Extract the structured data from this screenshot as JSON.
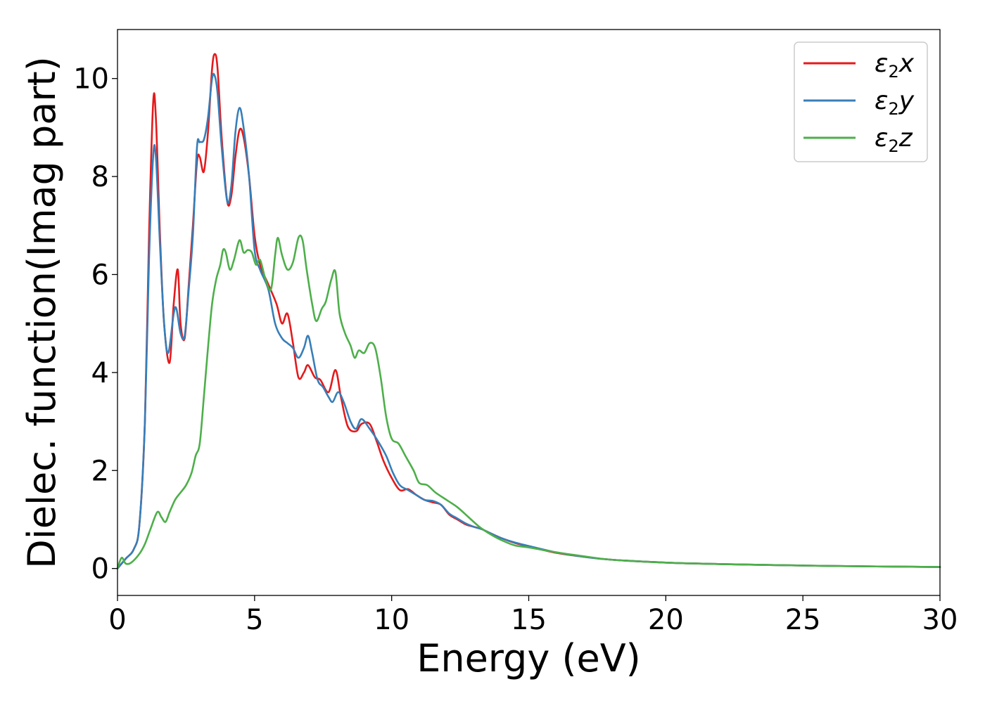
{
  "chart_data": {
    "type": "line",
    "xlabel": "Energy (eV)",
    "ylabel": "Dielec. function(Imag part)",
    "xlim": [
      0,
      30
    ],
    "ylim": [
      -0.55,
      11.0
    ],
    "xticks": [
      0,
      5,
      10,
      15,
      20,
      25,
      30
    ],
    "yticks": [
      0,
      2,
      4,
      6,
      8,
      10
    ],
    "grid": false,
    "legend_position": "top-right",
    "series": [
      {
        "name": "ε2x",
        "legend_main": "ε",
        "legend_sub": "2",
        "legend_tail": "x",
        "color": "#e41a1c",
        "points": [
          [
            0,
            0.0
          ],
          [
            0.3,
            0.2
          ],
          [
            0.6,
            0.4
          ],
          [
            0.8,
            0.9
          ],
          [
            1.0,
            3.0
          ],
          [
            1.15,
            6.8
          ],
          [
            1.3,
            9.5
          ],
          [
            1.4,
            9.2
          ],
          [
            1.55,
            6.8
          ],
          [
            1.7,
            5.0
          ],
          [
            1.9,
            4.2
          ],
          [
            2.05,
            5.4
          ],
          [
            2.2,
            6.1
          ],
          [
            2.3,
            5.0
          ],
          [
            2.45,
            4.7
          ],
          [
            2.6,
            5.8
          ],
          [
            2.75,
            7.0
          ],
          [
            2.9,
            8.3
          ],
          [
            3.0,
            8.4
          ],
          [
            3.15,
            8.1
          ],
          [
            3.3,
            8.9
          ],
          [
            3.45,
            10.2
          ],
          [
            3.55,
            10.5
          ],
          [
            3.65,
            10.2
          ],
          [
            3.8,
            8.8
          ],
          [
            4.0,
            7.5
          ],
          [
            4.15,
            7.6
          ],
          [
            4.3,
            8.4
          ],
          [
            4.45,
            8.95
          ],
          [
            4.6,
            8.8
          ],
          [
            4.8,
            8.0
          ],
          [
            5.0,
            6.8
          ],
          [
            5.2,
            6.2
          ],
          [
            5.5,
            5.8
          ],
          [
            5.8,
            5.4
          ],
          [
            6.0,
            5.0
          ],
          [
            6.2,
            5.2
          ],
          [
            6.4,
            4.6
          ],
          [
            6.6,
            3.9
          ],
          [
            6.8,
            4.0
          ],
          [
            6.95,
            4.15
          ],
          [
            7.2,
            3.9
          ],
          [
            7.4,
            3.85
          ],
          [
            7.7,
            3.6
          ],
          [
            7.95,
            4.05
          ],
          [
            8.15,
            3.5
          ],
          [
            8.4,
            2.9
          ],
          [
            8.7,
            2.8
          ],
          [
            8.9,
            2.95
          ],
          [
            9.2,
            2.95
          ],
          [
            9.45,
            2.6
          ],
          [
            9.7,
            2.2
          ],
          [
            10.0,
            1.85
          ],
          [
            10.3,
            1.6
          ],
          [
            10.6,
            1.62
          ],
          [
            10.9,
            1.5
          ],
          [
            11.2,
            1.4
          ],
          [
            11.5,
            1.35
          ],
          [
            11.8,
            1.3
          ],
          [
            12.1,
            1.1
          ],
          [
            12.4,
            1.0
          ],
          [
            12.7,
            0.9
          ],
          [
            13.0,
            0.85
          ],
          [
            13.3,
            0.8
          ],
          [
            13.6,
            0.72
          ],
          [
            14.0,
            0.62
          ],
          [
            14.5,
            0.52
          ],
          [
            15.0,
            0.45
          ],
          [
            16.0,
            0.32
          ],
          [
            17.0,
            0.24
          ],
          [
            18.0,
            0.18
          ],
          [
            20.0,
            0.12
          ],
          [
            22.0,
            0.09
          ],
          [
            25.0,
            0.06
          ],
          [
            28.0,
            0.04
          ],
          [
            30.0,
            0.03
          ]
        ]
      },
      {
        "name": "ε2y",
        "legend_main": "ε",
        "legend_sub": "2",
        "legend_tail": "y",
        "color": "#377eb8",
        "points": [
          [
            0,
            0.0
          ],
          [
            0.3,
            0.2
          ],
          [
            0.6,
            0.4
          ],
          [
            0.8,
            0.9
          ],
          [
            1.0,
            3.0
          ],
          [
            1.15,
            6.3
          ],
          [
            1.3,
            8.4
          ],
          [
            1.4,
            8.4
          ],
          [
            1.55,
            6.6
          ],
          [
            1.7,
            5.0
          ],
          [
            1.85,
            4.4
          ],
          [
            2.05,
            5.2
          ],
          [
            2.15,
            5.3
          ],
          [
            2.3,
            4.8
          ],
          [
            2.45,
            4.75
          ],
          [
            2.6,
            5.7
          ],
          [
            2.75,
            6.8
          ],
          [
            2.9,
            8.6
          ],
          [
            3.0,
            8.7
          ],
          [
            3.15,
            8.75
          ],
          [
            3.3,
            9.2
          ],
          [
            3.45,
            10.0
          ],
          [
            3.55,
            10.05
          ],
          [
            3.65,
            9.7
          ],
          [
            3.8,
            8.6
          ],
          [
            4.0,
            7.5
          ],
          [
            4.15,
            7.8
          ],
          [
            4.3,
            8.9
          ],
          [
            4.45,
            9.4
          ],
          [
            4.6,
            9.0
          ],
          [
            4.8,
            8.0
          ],
          [
            5.0,
            6.5
          ],
          [
            5.2,
            6.1
          ],
          [
            5.5,
            5.7
          ],
          [
            5.75,
            5.0
          ],
          [
            6.0,
            4.7
          ],
          [
            6.2,
            4.6
          ],
          [
            6.4,
            4.5
          ],
          [
            6.6,
            4.3
          ],
          [
            6.8,
            4.5
          ],
          [
            6.95,
            4.75
          ],
          [
            7.1,
            4.4
          ],
          [
            7.3,
            3.85
          ],
          [
            7.5,
            3.7
          ],
          [
            7.7,
            3.5
          ],
          [
            7.85,
            3.4
          ],
          [
            8.05,
            3.6
          ],
          [
            8.25,
            3.4
          ],
          [
            8.5,
            3.0
          ],
          [
            8.7,
            2.85
          ],
          [
            8.9,
            3.05
          ],
          [
            9.2,
            2.85
          ],
          [
            9.5,
            2.6
          ],
          [
            9.8,
            2.3
          ],
          [
            10.05,
            1.95
          ],
          [
            10.3,
            1.7
          ],
          [
            10.6,
            1.6
          ],
          [
            10.9,
            1.5
          ],
          [
            11.2,
            1.4
          ],
          [
            11.5,
            1.38
          ],
          [
            11.8,
            1.3
          ],
          [
            12.1,
            1.12
          ],
          [
            12.4,
            1.02
          ],
          [
            12.7,
            0.92
          ],
          [
            13.0,
            0.85
          ],
          [
            13.3,
            0.8
          ],
          [
            13.6,
            0.72
          ],
          [
            14.0,
            0.62
          ],
          [
            14.5,
            0.53
          ],
          [
            15.0,
            0.46
          ],
          [
            16.0,
            0.33
          ],
          [
            17.0,
            0.24
          ],
          [
            18.0,
            0.18
          ],
          [
            20.0,
            0.12
          ],
          [
            22.0,
            0.09
          ],
          [
            25.0,
            0.06
          ],
          [
            28.0,
            0.04
          ],
          [
            30.0,
            0.03
          ]
        ]
      },
      {
        "name": "ε2z",
        "legend_main": "ε",
        "legend_sub": "2",
        "legend_tail": "z",
        "color": "#4daf4a",
        "points": [
          [
            0,
            0.0
          ],
          [
            0.15,
            0.22
          ],
          [
            0.3,
            0.1
          ],
          [
            0.5,
            0.12
          ],
          [
            0.8,
            0.3
          ],
          [
            1.0,
            0.5
          ],
          [
            1.2,
            0.8
          ],
          [
            1.45,
            1.15
          ],
          [
            1.6,
            1.05
          ],
          [
            1.75,
            0.95
          ],
          [
            1.9,
            1.15
          ],
          [
            2.1,
            1.4
          ],
          [
            2.3,
            1.55
          ],
          [
            2.5,
            1.7
          ],
          [
            2.7,
            1.95
          ],
          [
            2.85,
            2.3
          ],
          [
            3.0,
            2.55
          ],
          [
            3.15,
            3.5
          ],
          [
            3.3,
            4.5
          ],
          [
            3.45,
            5.4
          ],
          [
            3.6,
            5.9
          ],
          [
            3.75,
            6.2
          ],
          [
            3.85,
            6.5
          ],
          [
            3.95,
            6.45
          ],
          [
            4.1,
            6.1
          ],
          [
            4.25,
            6.3
          ],
          [
            4.45,
            6.7
          ],
          [
            4.6,
            6.45
          ],
          [
            4.75,
            6.5
          ],
          [
            4.9,
            6.45
          ],
          [
            5.05,
            6.2
          ],
          [
            5.2,
            6.3
          ],
          [
            5.4,
            5.9
          ],
          [
            5.6,
            5.7
          ],
          [
            5.75,
            6.4
          ],
          [
            5.85,
            6.75
          ],
          [
            6.0,
            6.4
          ],
          [
            6.2,
            6.1
          ],
          [
            6.4,
            6.25
          ],
          [
            6.6,
            6.75
          ],
          [
            6.75,
            6.7
          ],
          [
            6.9,
            6.1
          ],
          [
            7.1,
            5.4
          ],
          [
            7.25,
            5.05
          ],
          [
            7.45,
            5.3
          ],
          [
            7.6,
            5.45
          ],
          [
            7.8,
            5.9
          ],
          [
            7.95,
            6.05
          ],
          [
            8.1,
            5.2
          ],
          [
            8.3,
            4.8
          ],
          [
            8.5,
            4.55
          ],
          [
            8.65,
            4.3
          ],
          [
            8.8,
            4.45
          ],
          [
            9.0,
            4.4
          ],
          [
            9.2,
            4.6
          ],
          [
            9.4,
            4.5
          ],
          [
            9.6,
            3.9
          ],
          [
            9.8,
            3.1
          ],
          [
            10.0,
            2.65
          ],
          [
            10.25,
            2.55
          ],
          [
            10.5,
            2.3
          ],
          [
            10.8,
            2.0
          ],
          [
            11.0,
            1.75
          ],
          [
            11.3,
            1.7
          ],
          [
            11.6,
            1.55
          ],
          [
            12.0,
            1.4
          ],
          [
            12.4,
            1.25
          ],
          [
            12.8,
            1.05
          ],
          [
            13.2,
            0.85
          ],
          [
            13.6,
            0.7
          ],
          [
            14.0,
            0.58
          ],
          [
            14.5,
            0.47
          ],
          [
            15.0,
            0.43
          ],
          [
            16.0,
            0.33
          ],
          [
            17.0,
            0.25
          ],
          [
            18.0,
            0.18
          ],
          [
            20.0,
            0.12
          ],
          [
            22.0,
            0.09
          ],
          [
            25.0,
            0.06
          ],
          [
            28.0,
            0.04
          ],
          [
            30.0,
            0.03
          ]
        ]
      }
    ]
  }
}
